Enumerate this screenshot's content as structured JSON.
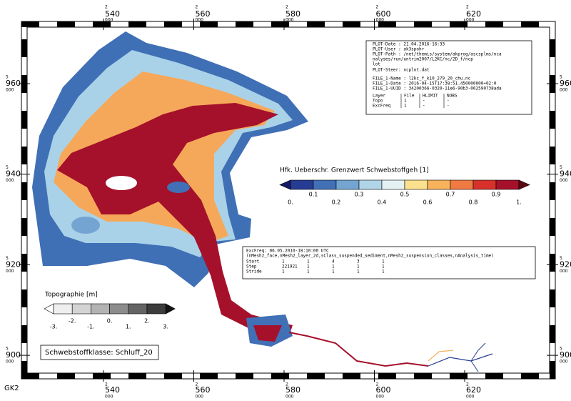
{
  "map": {
    "x_ticks": [
      [
        "2",
        "540",
        "000"
      ],
      [
        "2",
        "560",
        "000"
      ],
      [
        "2",
        "580",
        "000"
      ],
      [
        "2",
        "600",
        "000"
      ],
      [
        "2",
        "620",
        "000"
      ]
    ],
    "y_ticks": [
      [
        "5",
        "960",
        "000"
      ],
      [
        "5",
        "940",
        "000"
      ],
      [
        "5",
        "920",
        "000"
      ],
      [
        "5",
        "900",
        "000"
      ]
    ],
    "projection": "GK2"
  },
  "plot_info": {
    "lines": [
      "PLOT-Date : 21.04.2016-16:33",
      "PLOT-User : ak3spohr",
      "PLOT-Path : /net/themis/system/akprog/ascsplms/nca",
      "nalyses/run/untrim2007/L2KC/nc/2D_f/ncp",
      "lot",
      "PLOT-Steer: ncplot.dat",
      "FILE_1-Name : l2kc_f_k10_279_20_chu.nc",
      "FILE_1-Date : 2016-04-15T17:38:51.450000000+02:0",
      "FILE_1-UUID : 34200366-0320-11e6-90b3-002590738ada"
    ],
    "table": [
      [
        "Layer",
        "File",
        "HLIMIT",
        "NOBS"
      ],
      [
        "Topo",
        "1",
        "-",
        "-"
      ],
      [
        "ExcFreq",
        "1",
        "-",
        "-"
      ]
    ]
  },
  "time_info": {
    "lines": [
      "ExcFreq: 06.05.2010-18:10:00 UTC",
      "(nMesh2_face,nMesh2_layer_2d,sClass_suspended_sediment,nMesh2_suspension_classes,nAnalysis_time)"
    ],
    "table": [
      [
        "Start",
        "1",
        "1",
        "4",
        "3",
        "1"
      ],
      [
        "Step",
        "221921",
        "1",
        "1",
        "1",
        "1"
      ],
      [
        "Stride",
        "1",
        "1",
        "1",
        "1",
        "1"
      ]
    ]
  },
  "legend_main": {
    "title": "Hfk. Ueberschr. Grenzwert Schwebstoffgeh [1]",
    "labels": [
      "0.",
      "0.1",
      "0.2",
      "0.3",
      "0.4",
      "0.5",
      "0.6",
      "0.7",
      "0.8",
      "0.9",
      "1."
    ],
    "colors": [
      "#141a66",
      "#263c93",
      "#4170b6",
      "#74a5d2",
      "#b0d5e8",
      "#e4f2f4",
      "#fbe08e",
      "#f7b25c",
      "#ef7a42",
      "#d6322b",
      "#a5102b",
      "#5a0a12"
    ]
  },
  "legend_topo": {
    "title": "Topographie [m]",
    "labels": [
      "-3.",
      "-2.",
      "-1.",
      "0.",
      "1.",
      "2.",
      "3."
    ],
    "colors": [
      "#ffffff",
      "#efefef",
      "#d4d4d4",
      "#b3b3b3",
      "#8c8c8c",
      "#646464",
      "#3c3c3c",
      "#141414"
    ]
  },
  "class_label": "Schwebstoffklasse: Schluff_20"
}
